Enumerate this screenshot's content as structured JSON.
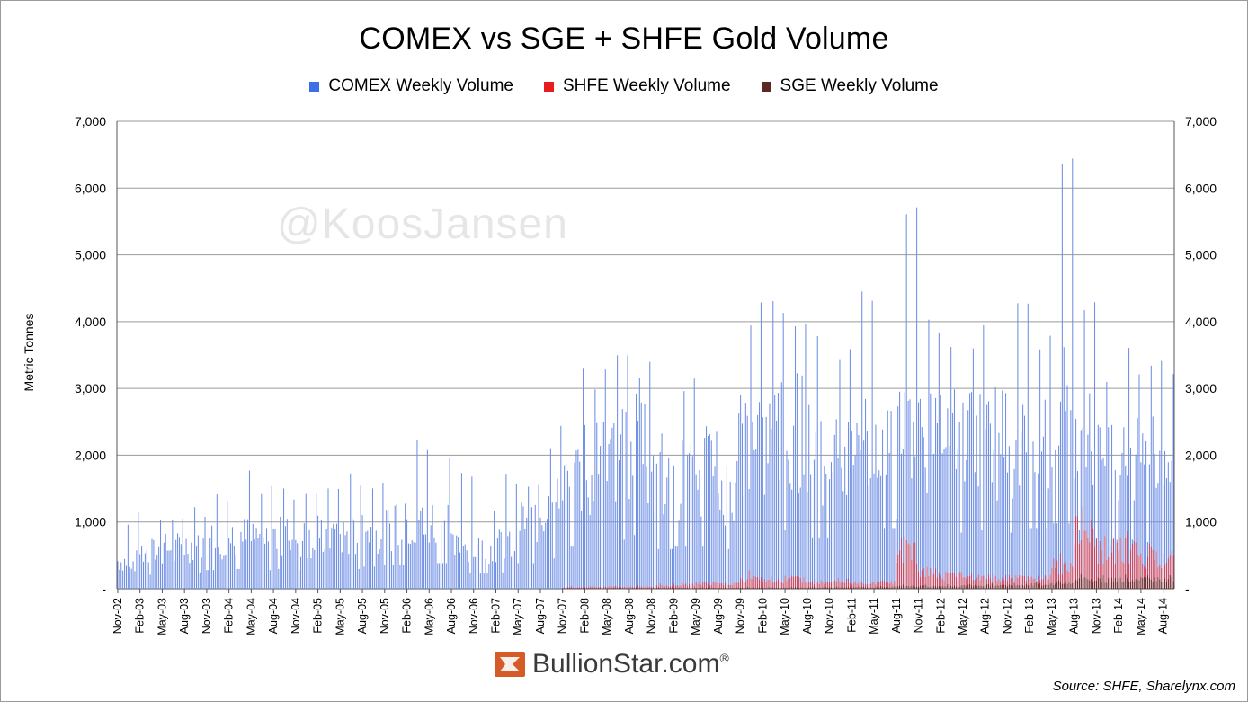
{
  "colors": {
    "comex": "#6f8fe6",
    "shfe": "#ee2b2b",
    "sge": "#5a2a22",
    "grid": "#9a9a9a",
    "axis": "#555555",
    "brand_icon": "#d35c28"
  },
  "header": {
    "title": "COMEX vs SGE + SHFE Gold Volume"
  },
  "legend": {
    "items": [
      {
        "label": "COMEX Weekly Volume",
        "color": "#3a6fe8"
      },
      {
        "label": "SHFE Weekly Volume",
        "color": "#e81c1c"
      },
      {
        "label": "SGE Weekly Volume",
        "color": "#5a2a22"
      }
    ]
  },
  "axis": {
    "ylabel": "Metric Tonnes"
  },
  "watermark": "@KoosJansen",
  "brand": {
    "name": "BullionStar.com",
    "reg": "®",
    "icon": "bullionstar-logo-icon"
  },
  "source": "Source: SHFE, Sharelynx.com",
  "chart_data": {
    "type": "bar",
    "title": "COMEX vs SGE + SHFE Gold Volume",
    "xlabel": "",
    "ylabel": "Metric Tonnes",
    "ylim": [
      0,
      7000
    ],
    "yticks": [
      0,
      1000,
      2000,
      3000,
      4000,
      5000,
      6000,
      7000
    ],
    "ytick_labels": [
      "-",
      "1,000",
      "2,000",
      "3,000",
      "4,000",
      "5,000",
      "6,000",
      "7,000"
    ],
    "grid": true,
    "legend_position": "top",
    "frequency": "weekly",
    "x_tick_labels": [
      "Nov-02",
      "Feb-03",
      "May-03",
      "Aug-03",
      "Nov-03",
      "Feb-04",
      "May-04",
      "Aug-04",
      "Nov-04",
      "Feb-05",
      "May-05",
      "Aug-05",
      "Nov-05",
      "Feb-06",
      "May-06",
      "Aug-06",
      "Nov-06",
      "Feb-07",
      "May-07",
      "Aug-07",
      "Nov-07",
      "Feb-08",
      "May-08",
      "Aug-08",
      "Nov-08",
      "Feb-09",
      "May-09",
      "Aug-09",
      "Nov-09",
      "Feb-10",
      "May-10",
      "Aug-10",
      "Nov-10",
      "Feb-11",
      "May-11",
      "Aug-11",
      "Nov-11",
      "Feb-12",
      "May-12",
      "Aug-12",
      "Nov-12",
      "Feb-13",
      "May-13",
      "Aug-13",
      "Nov-13",
      "Feb-14",
      "May-14",
      "Aug-14"
    ],
    "series": [
      {
        "name": "COMEX Weekly Volume",
        "color": "#6f8fe6",
        "quarterly_typical": [
          450,
          600,
          650,
          700,
          800,
          850,
          800,
          850,
          800,
          900,
          850,
          950,
          1000,
          1100,
          1100,
          650,
          650,
          700,
          1100,
          1300,
          1800,
          2000,
          2100,
          2300,
          1700,
          1800,
          1800,
          1700,
          2300,
          2500,
          2500,
          2200,
          2200,
          2500,
          2600,
          3000,
          2500,
          2400,
          2500,
          2300,
          2400,
          2600,
          2800,
          2500,
          2100,
          2100,
          2000,
          1900
        ],
        "quarterly_peak": [
          1150,
          1150,
          1200,
          1250,
          1600,
          1800,
          1700,
          1600,
          1650,
          1700,
          1750,
          1600,
          1400,
          2300,
          2050,
          1800,
          1400,
          1800,
          1750,
          2480,
          3550,
          3550,
          3750,
          3750,
          2700,
          3300,
          2800,
          2800,
          4350,
          4600,
          4600,
          4000,
          4050,
          4550,
          4600,
          5900,
          4650,
          4150,
          4150,
          3500,
          4700,
          3800,
          6650,
          4550,
          3150,
          3800,
          3800,
          3300
        ]
      },
      {
        "name": "SHFE Weekly Volume",
        "color": "#ee2b2b",
        "quarterly_typical": [
          0,
          0,
          0,
          0,
          0,
          0,
          0,
          0,
          0,
          0,
          0,
          0,
          0,
          0,
          0,
          0,
          0,
          0,
          0,
          0,
          20,
          25,
          30,
          30,
          40,
          60,
          80,
          70,
          150,
          130,
          150,
          110,
          120,
          90,
          100,
          600,
          250,
          200,
          180,
          170,
          170,
          160,
          350,
          900,
          600,
          600,
          500,
          450
        ],
        "quarterly_peak": [
          0,
          0,
          0,
          0,
          0,
          0,
          0,
          0,
          0,
          0,
          0,
          0,
          0,
          0,
          0,
          0,
          0,
          0,
          0,
          0,
          40,
          45,
          50,
          60,
          80,
          110,
          120,
          110,
          280,
          200,
          200,
          160,
          160,
          130,
          140,
          800,
          380,
          280,
          250,
          220,
          220,
          220,
          560,
          1250,
          850,
          920,
          700,
          650
        ]
      },
      {
        "name": "SGE Weekly Volume",
        "color": "#5a2a22",
        "quarterly_typical": [
          0,
          0,
          0,
          0,
          0,
          0,
          0,
          0,
          0,
          0,
          0,
          0,
          0,
          0,
          0,
          0,
          0,
          0,
          0,
          0,
          10,
          10,
          10,
          10,
          12,
          14,
          14,
          14,
          18,
          18,
          18,
          20,
          22,
          24,
          28,
          40,
          40,
          45,
          50,
          55,
          60,
          70,
          90,
          150,
          140,
          150,
          150,
          150
        ],
        "quarterly_peak": [
          0,
          0,
          0,
          0,
          0,
          0,
          0,
          0,
          0,
          0,
          0,
          0,
          0,
          0,
          0,
          0,
          0,
          0,
          0,
          0,
          15,
          15,
          15,
          15,
          18,
          20,
          20,
          20,
          25,
          25,
          25,
          30,
          30,
          35,
          40,
          60,
          60,
          65,
          70,
          75,
          80,
          100,
          130,
          220,
          200,
          210,
          200,
          200
        ]
      }
    ]
  }
}
